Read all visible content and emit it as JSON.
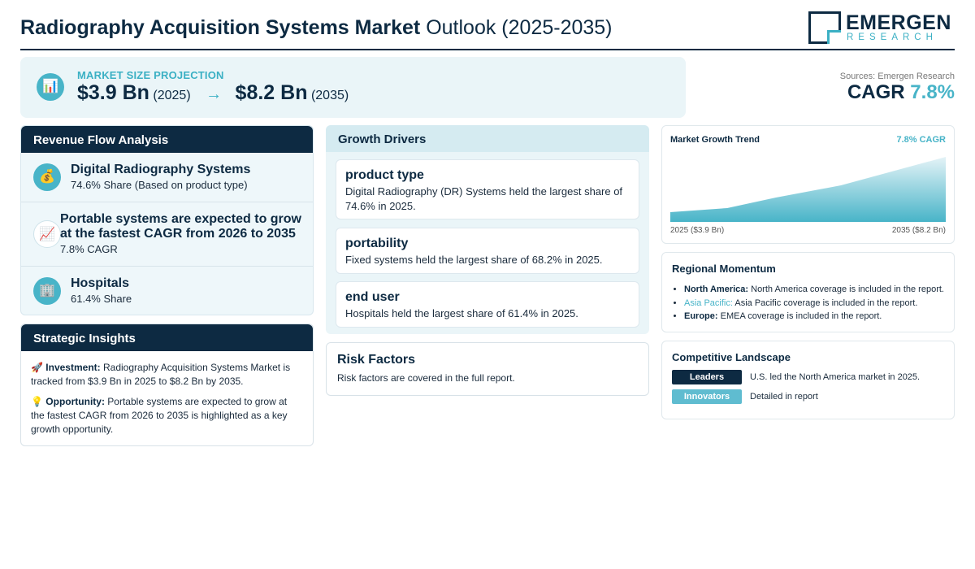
{
  "header": {
    "title_bold": "Radiography Acquisition Systems Market",
    "title_light": "Outlook (2025-2035)",
    "logo_main": "EMERGEN",
    "logo_sub": "RESEARCH"
  },
  "projection": {
    "icon": "bar-chart-icon",
    "label": "MARKET SIZE PROJECTION",
    "start_value": "$3.9 Bn",
    "start_year": "(2025)",
    "arrow": "→",
    "end_value": "$8.2 Bn",
    "end_year": "(2035)"
  },
  "sources": "Sources: Emergen Research",
  "cagr": {
    "label": "CAGR",
    "value": "7.8%"
  },
  "revenue_flow": {
    "title": "Revenue Flow Analysis",
    "items": [
      {
        "icon": "money-bag-icon",
        "title": "Digital Radiography Systems",
        "sub": "74.6% Share (Based on product type)"
      },
      {
        "icon": "trend-up-icon",
        "title": "Portable systems are expected to grow at the fastest CAGR from 2026 to 2035",
        "sub": "7.8% CAGR"
      },
      {
        "icon": "building-icon",
        "title": "Hospitals",
        "sub": "61.4% Share"
      }
    ]
  },
  "strategic": {
    "title": "Strategic Insights",
    "items": [
      {
        "icon": "🚀",
        "label": "Investment:",
        "text": "Radiography Acquisition Systems Market is tracked from $3.9 Bn in 2025 to $8.2 Bn by 2035."
      },
      {
        "icon": "💡",
        "label": "Opportunity:",
        "text": "Portable systems are expected to grow at the fastest CAGR from 2026 to 2035 is highlighted as a key growth opportunity."
      }
    ]
  },
  "drivers": {
    "title": "Growth Drivers",
    "items": [
      {
        "title": "product type",
        "text": "Digital Radiography (DR) Systems held the largest share of 74.6% in 2025."
      },
      {
        "title": "portability",
        "text": "Fixed systems held the largest share of 68.2% in 2025."
      },
      {
        "title": "end user",
        "text": "Hospitals held the largest share of 61.4% in 2025."
      }
    ]
  },
  "risk": {
    "title": "Risk Factors",
    "text": "Risk factors are covered in the full report."
  },
  "trend": {
    "title": "Market Growth Trend",
    "cagr": "7.8% CAGR",
    "start_label": "2025 ($3.9 Bn)",
    "end_label": "2035 ($8.2 Bn)",
    "colors": {
      "fill_top": "#48b4c8",
      "fill_bottom": "#e4f3f7"
    }
  },
  "regional": {
    "title": "Regional Momentum",
    "items": [
      {
        "region": "North America:",
        "text": "North America coverage is included in the report."
      },
      {
        "region": "Asia Pacific:",
        "text": "Asia Pacific coverage is included in the report."
      },
      {
        "region": "Europe:",
        "text": "EMEA coverage is included in the report."
      }
    ]
  },
  "competitive": {
    "title": "Competitive Landscape",
    "rows": [
      {
        "tag": "Leaders",
        "text": "U.S. led the North America market in 2025."
      },
      {
        "tag": "Innovators",
        "text": "Detailed in report"
      }
    ]
  },
  "colors": {
    "navy": "#0d2a42",
    "teal": "#48b4c8",
    "panel": "#eaf5f8"
  }
}
